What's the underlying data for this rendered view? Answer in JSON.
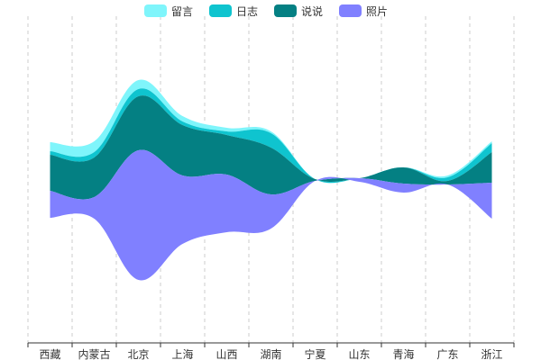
{
  "chart_data": {
    "type": "themeRiver",
    "title": "",
    "categories": [
      "西藏",
      "内蒙古",
      "北京",
      "上海",
      "山西",
      "湖南",
      "宁夏",
      "山东",
      "青海",
      "广东",
      "浙江"
    ],
    "series": [
      {
        "name": "留言",
        "color": "#7ff5fb",
        "values": [
          5,
          6,
          5,
          3,
          2,
          1,
          0,
          0,
          0,
          1,
          1
        ]
      },
      {
        "name": "日志",
        "color": "#0fc4cf",
        "values": [
          2,
          3,
          4,
          2,
          2,
          8,
          0,
          0,
          0,
          2,
          5
        ]
      },
      {
        "name": "说说",
        "color": "#048083",
        "values": [
          20,
          22,
          30,
          28,
          22,
          26,
          1,
          0,
          9,
          2,
          17
        ]
      },
      {
        "name": "照片",
        "color": "#8080ff",
        "values": [
          15,
          12,
          72,
          38,
          32,
          19,
          0,
          2,
          5,
          0,
          20
        ]
      }
    ],
    "legend_position": "top-center",
    "grid_lines": "dashed-vertical"
  }
}
